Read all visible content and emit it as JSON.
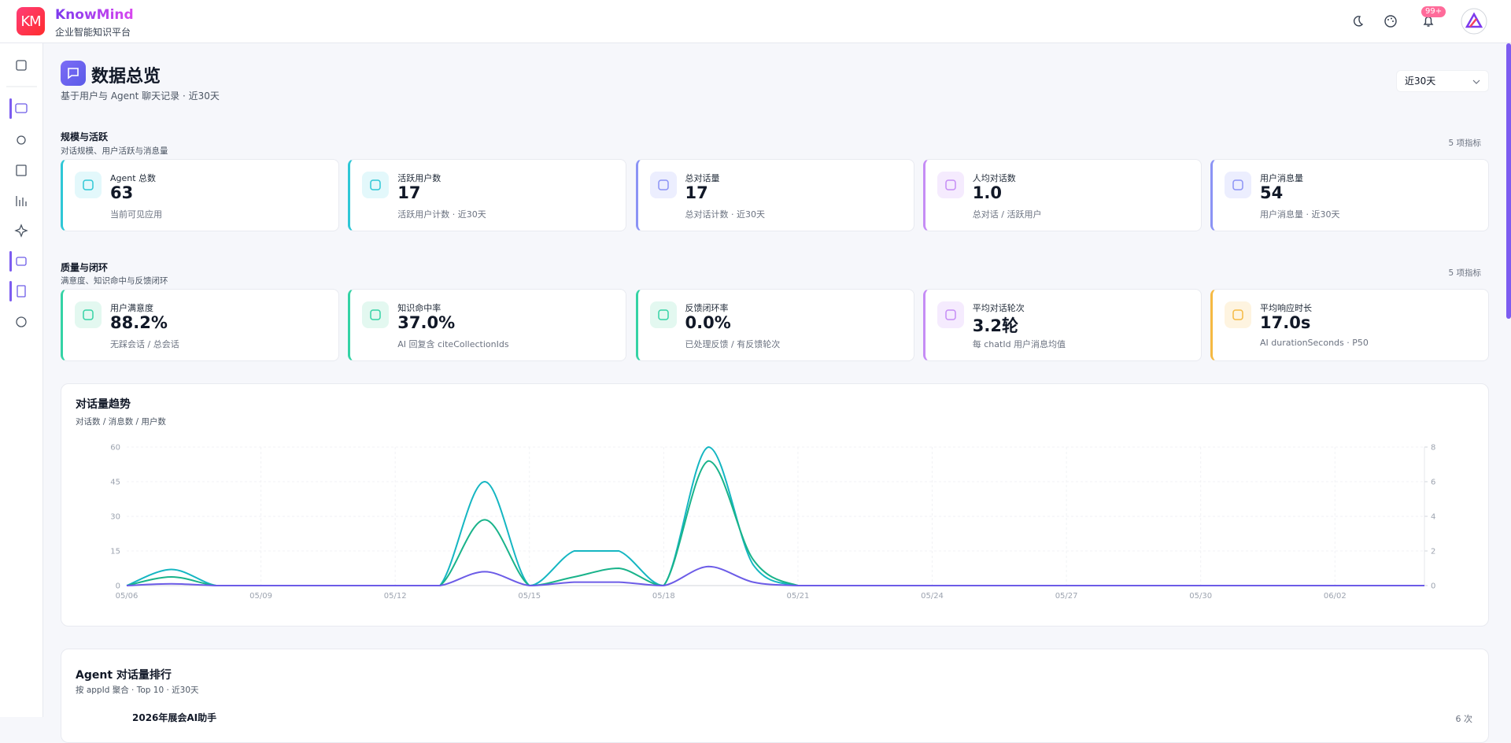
{
  "header": {
    "logo": "KM",
    "brand": "KnowMind",
    "subtitle": "企业智能知识平台",
    "badge": "99+"
  },
  "page": {
    "title": "数据总览",
    "subtitle": "基于用户与 Agent 聊天记录 · 近30天",
    "range": "近30天"
  },
  "sections": [
    {
      "title": "规模与活跃",
      "subtitle": "对话规模、用户活跃与消息量",
      "count": "5 项指标",
      "cards": [
        {
          "label": "Agent 总数",
          "value": "63",
          "note": "当前可见应用"
        },
        {
          "label": "活跃用户数",
          "value": "17",
          "note": "活跃用户计数 · 近30天"
        },
        {
          "label": "总对话量",
          "value": "17",
          "note": "总对话计数 · 近30天"
        },
        {
          "label": "人均对话数",
          "value": "1.0",
          "note": "总对话 / 活跃用户"
        },
        {
          "label": "用户消息量",
          "value": "54",
          "note": "用户消息量 · 近30天"
        }
      ]
    },
    {
      "title": "质量与闭环",
      "subtitle": "满意度、知识命中与反馈闭环",
      "count": "5 项指标",
      "cards": [
        {
          "label": "用户满意度",
          "value": "88.2%",
          "note": "无踩会话 / 总会话"
        },
        {
          "label": "知识命中率",
          "value": "37.0%",
          "note": "AI 回复含 citeCollectionIds"
        },
        {
          "label": "反馈闭环率",
          "value": "0.0%",
          "note": "已处理反馈 / 有反馈轮次"
        },
        {
          "label": "平均对话轮次",
          "value": "3.2轮",
          "note": "每 chatId 用户消息均值"
        },
        {
          "label": "平均响应时长",
          "value": "17.0s",
          "note": "AI durationSeconds · P50"
        }
      ]
    }
  ],
  "chart_data": {
    "type": "line",
    "title": "对话量趋势",
    "subtitle": "对话数 / 消息数 / 用户数",
    "categories": [
      "05/06",
      null,
      null,
      "05/09",
      null,
      null,
      "05/12",
      null,
      null,
      "05/15",
      null,
      null,
      "05/18",
      null,
      null,
      "05/21",
      null,
      null,
      "05/24",
      null,
      null,
      "05/27",
      null,
      null,
      "05/30",
      null,
      null,
      "06/02",
      null,
      null
    ],
    "series": [
      {
        "color": "#15b6c2",
        "values": [
          0,
          7,
          0,
          0,
          0,
          0,
          0,
          0,
          45,
          0,
          15,
          15,
          0,
          60,
          9,
          0,
          0,
          0,
          0,
          0,
          0,
          0,
          0,
          0,
          0,
          0,
          0,
          0,
          0,
          0
        ]
      },
      {
        "color": "#19b38a",
        "axis": "y2",
        "values": [
          0,
          0.5,
          0,
          0,
          0,
          0,
          0,
          0,
          3.8,
          0,
          0.5,
          1,
          0,
          7.2,
          1.5,
          0,
          0,
          0,
          0,
          0,
          0,
          0,
          0,
          0,
          0,
          0,
          0,
          0,
          0,
          0
        ]
      },
      {
        "color": "#6c5ce7",
        "axis": "y2",
        "values": [
          0,
          0.1,
          0,
          0,
          0,
          0,
          0,
          0,
          0.8,
          0,
          0.2,
          0.2,
          0,
          1.1,
          0.2,
          0,
          0,
          0,
          0,
          0,
          0,
          0,
          0,
          0,
          0,
          0,
          0,
          0,
          0,
          0
        ]
      }
    ],
    "ylim": [
      0,
      60
    ],
    "yticks": [
      0,
      15,
      30,
      45,
      60
    ],
    "y2lim": [
      0,
      8
    ],
    "y2ticks": [
      0,
      2,
      4,
      6,
      8
    ],
    "grid": true
  },
  "ranking": {
    "title": "Agent 对话量排行",
    "subtitle": "按 appId 聚合 · Top 10 · 近30天",
    "rows": [
      {
        "name": "2026年展会AI助手",
        "count": "6 次"
      }
    ]
  }
}
